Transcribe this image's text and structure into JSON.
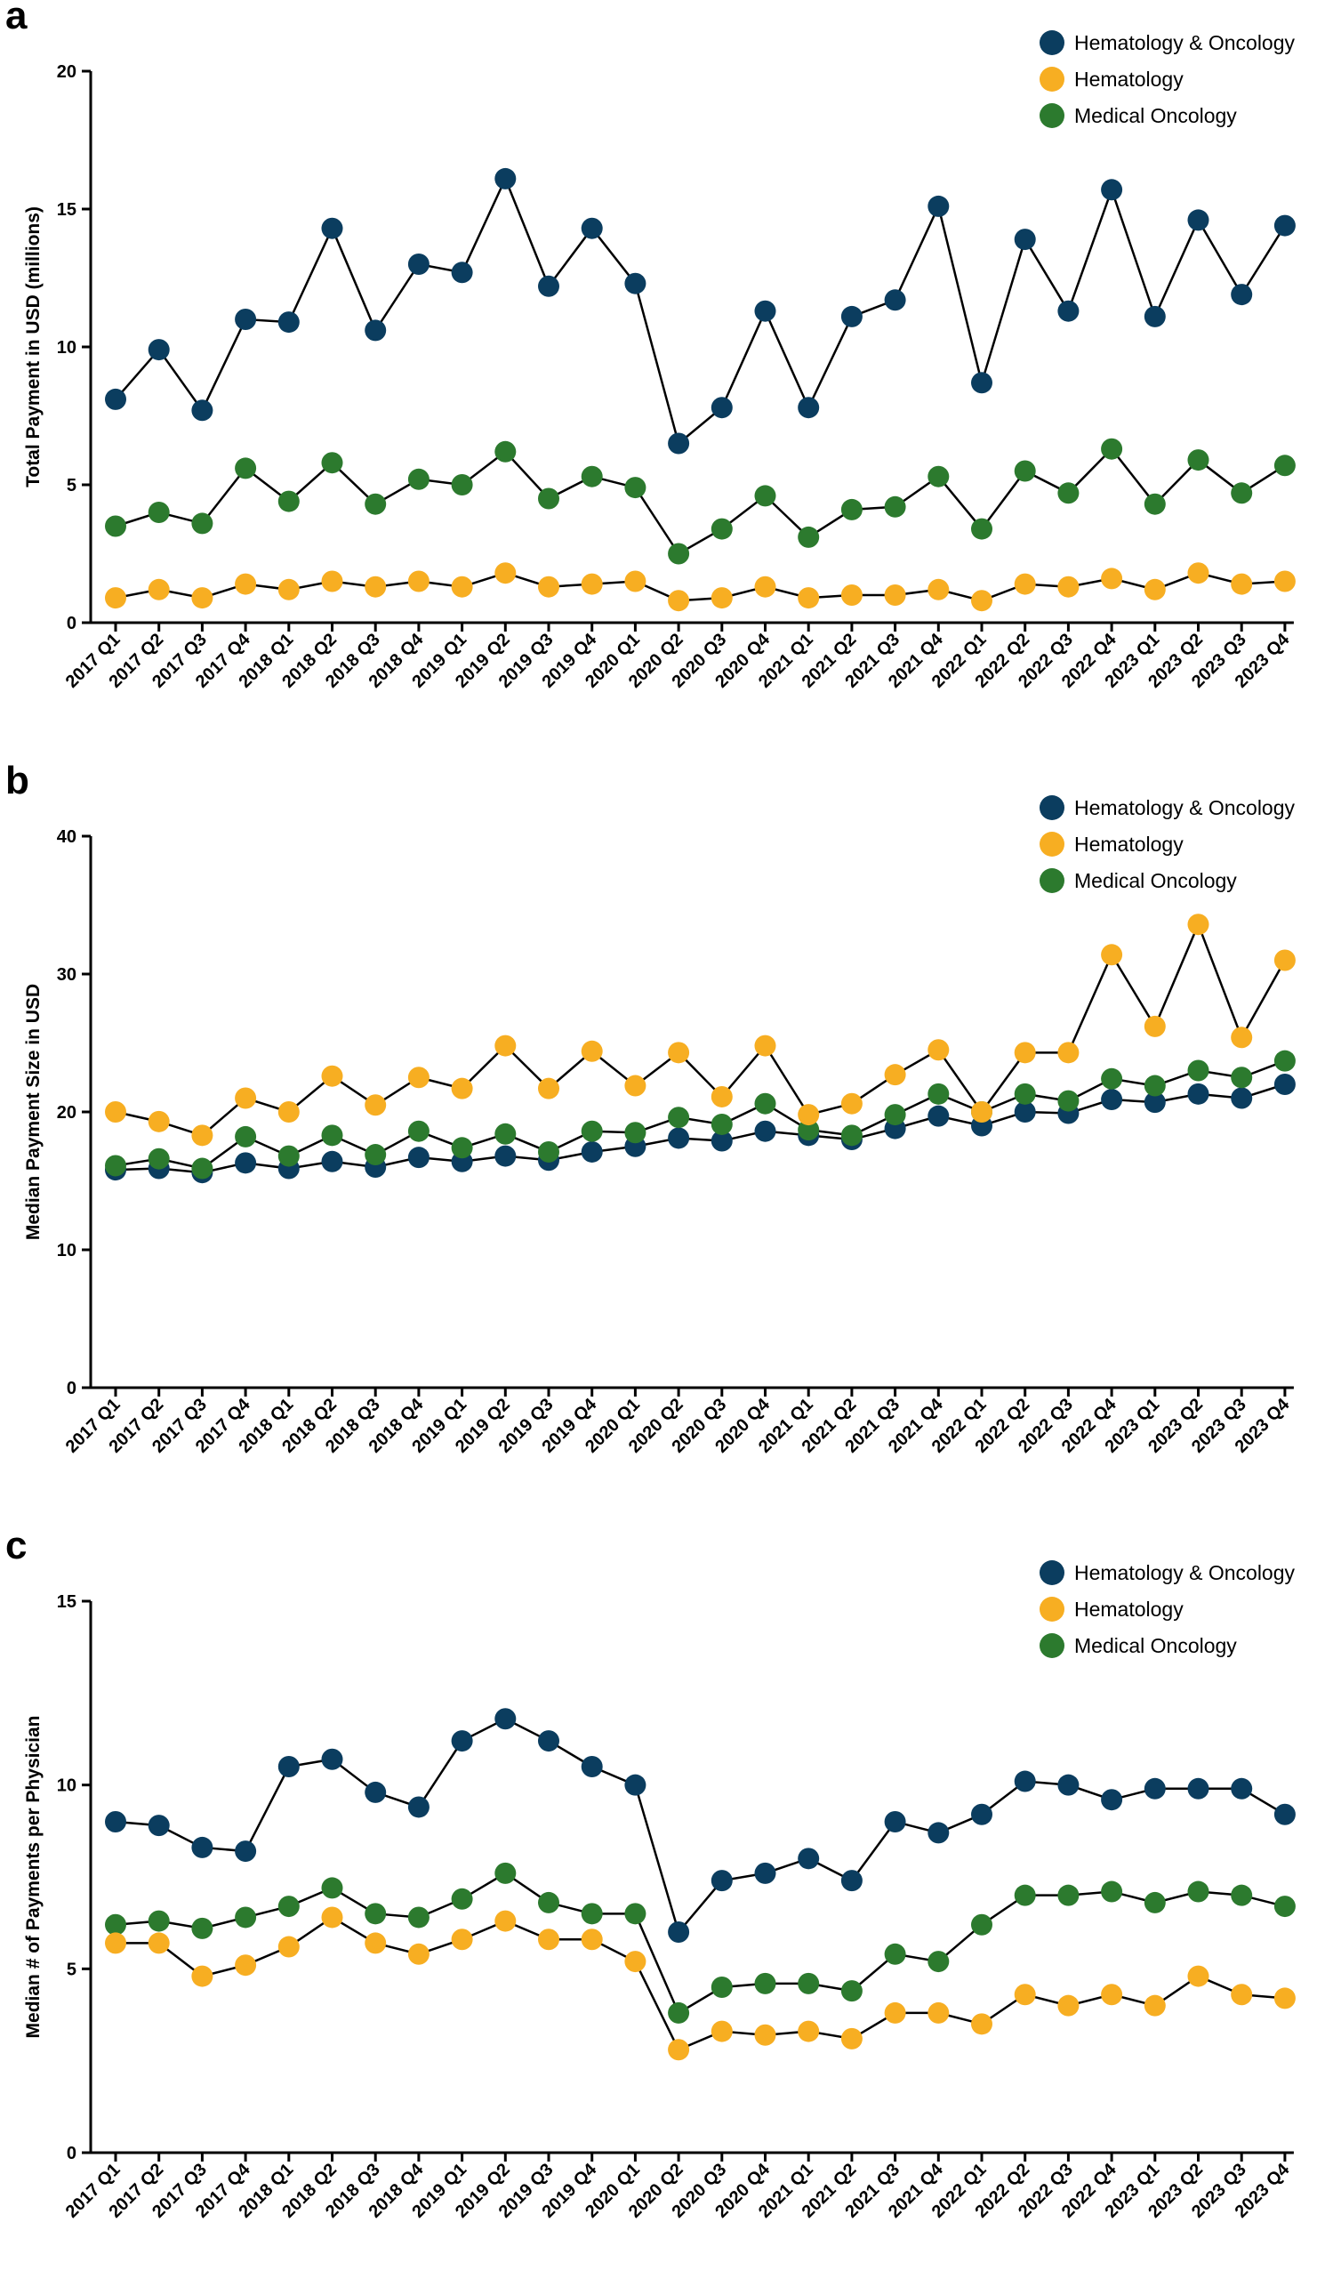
{
  "colors": {
    "hem_onc": "#0b3d5f",
    "hematology": "#f7ae22",
    "med_onc": "#2c7a2e"
  },
  "chart_data": [
    {
      "panel": "a",
      "type": "line",
      "title": "",
      "xlabel": "",
      "ylabel": "Total Payment in USD (millions)",
      "ylim": [
        0,
        20
      ],
      "yticks": [
        0,
        5,
        10,
        15,
        20
      ],
      "legend_position": "top-right",
      "categories": [
        "2017 Q1",
        "2017 Q2",
        "2017 Q3",
        "2017 Q4",
        "2018 Q1",
        "2018 Q2",
        "2018 Q3",
        "2018 Q4",
        "2019 Q1",
        "2019 Q2",
        "2019 Q3",
        "2019 Q4",
        "2020 Q1",
        "2020 Q2",
        "2020 Q3",
        "2020 Q4",
        "2021 Q1",
        "2021 Q2",
        "2021 Q3",
        "2021 Q4",
        "2022 Q1",
        "2022 Q2",
        "2022 Q3",
        "2022 Q4",
        "2023 Q1",
        "2023 Q2",
        "2023 Q3",
        "2023 Q4"
      ],
      "series": [
        {
          "name": "Hematology & Oncology",
          "color_key": "hem_onc",
          "values": [
            8.1,
            9.9,
            7.7,
            11.0,
            10.9,
            14.3,
            10.6,
            13.0,
            12.7,
            16.1,
            12.2,
            14.3,
            12.3,
            6.5,
            7.8,
            11.3,
            7.8,
            11.1,
            11.7,
            15.1,
            8.7,
            13.9,
            11.3,
            15.7,
            11.1,
            14.6,
            11.9,
            14.4
          ]
        },
        {
          "name": "Hematology",
          "color_key": "hematology",
          "values": [
            0.9,
            1.2,
            0.9,
            1.4,
            1.2,
            1.5,
            1.3,
            1.5,
            1.3,
            1.8,
            1.3,
            1.4,
            1.5,
            0.8,
            0.9,
            1.3,
            0.9,
            1.0,
            1.0,
            1.2,
            0.8,
            1.4,
            1.3,
            1.6,
            1.2,
            1.8,
            1.4,
            1.5
          ]
        },
        {
          "name": "Medical Oncology",
          "color_key": "med_onc",
          "values": [
            3.5,
            4.0,
            3.6,
            5.6,
            4.4,
            5.8,
            4.3,
            5.2,
            5.0,
            6.2,
            4.5,
            5.3,
            4.9,
            2.5,
            3.4,
            4.6,
            3.1,
            4.1,
            4.2,
            5.3,
            3.4,
            5.5,
            4.7,
            6.3,
            4.3,
            5.9,
            4.7,
            5.7
          ]
        }
      ]
    },
    {
      "panel": "b",
      "type": "line",
      "title": "",
      "xlabel": "",
      "ylabel": "Median Payment Size in USD",
      "ylim": [
        0,
        40
      ],
      "yticks": [
        0,
        10,
        20,
        30,
        40
      ],
      "legend_position": "top-right",
      "categories": [
        "2017 Q1",
        "2017 Q2",
        "2017 Q3",
        "2017 Q4",
        "2018 Q1",
        "2018 Q2",
        "2018 Q3",
        "2018 Q4",
        "2019 Q1",
        "2019 Q2",
        "2019 Q3",
        "2019 Q4",
        "2020 Q1",
        "2020 Q2",
        "2020 Q3",
        "2020 Q4",
        "2021 Q1",
        "2021 Q2",
        "2021 Q3",
        "2021 Q4",
        "2022 Q1",
        "2022 Q2",
        "2022 Q3",
        "2022 Q4",
        "2023 Q1",
        "2023 Q2",
        "2023 Q3",
        "2023 Q4"
      ],
      "series": [
        {
          "name": "Hematology & Oncology",
          "color_key": "hem_onc",
          "values": [
            15.8,
            15.9,
            15.6,
            16.3,
            15.9,
            16.4,
            16.0,
            16.7,
            16.4,
            16.8,
            16.5,
            17.1,
            17.5,
            18.1,
            17.9,
            18.6,
            18.3,
            18.0,
            18.8,
            19.7,
            19.0,
            20.0,
            19.9,
            20.9,
            20.7,
            21.3,
            21.0,
            22.0
          ]
        },
        {
          "name": "Hematology",
          "color_key": "hematology",
          "values": [
            20.0,
            19.3,
            18.3,
            21.0,
            20.0,
            22.6,
            20.5,
            22.5,
            21.7,
            24.8,
            21.7,
            24.4,
            21.9,
            24.3,
            21.1,
            24.8,
            19.8,
            20.6,
            22.7,
            24.5,
            20.0,
            24.3,
            24.3,
            31.4,
            26.2,
            33.6,
            25.4,
            31.0
          ]
        },
        {
          "name": "Medical Oncology",
          "color_key": "med_onc",
          "values": [
            16.1,
            16.6,
            15.9,
            18.2,
            16.8,
            18.3,
            16.9,
            18.6,
            17.4,
            18.4,
            17.1,
            18.6,
            18.5,
            19.6,
            19.1,
            20.6,
            18.7,
            18.3,
            19.8,
            21.3,
            20.0,
            21.3,
            20.8,
            22.4,
            21.9,
            23.0,
            22.5,
            23.7
          ]
        }
      ]
    },
    {
      "panel": "c",
      "type": "line",
      "title": "",
      "xlabel": "",
      "ylabel": "Median # of Payments per Physician",
      "ylim": [
        0,
        15
      ],
      "yticks": [
        0,
        5,
        10,
        15
      ],
      "legend_position": "top-right",
      "categories": [
        "2017 Q1",
        "2017 Q2",
        "2017 Q3",
        "2017 Q4",
        "2018 Q1",
        "2018 Q2",
        "2018 Q3",
        "2018 Q4",
        "2019 Q1",
        "2019 Q2",
        "2019 Q3",
        "2019 Q4",
        "2020 Q1",
        "2020 Q2",
        "2020 Q3",
        "2020 Q4",
        "2021 Q1",
        "2021 Q2",
        "2021 Q3",
        "2021 Q4",
        "2022 Q1",
        "2022 Q2",
        "2022 Q3",
        "2022 Q4",
        "2023 Q1",
        "2023 Q2",
        "2023 Q3",
        "2023 Q4"
      ],
      "series": [
        {
          "name": "Hematology & Oncology",
          "color_key": "hem_onc",
          "values": [
            9.0,
            8.9,
            8.3,
            8.2,
            10.5,
            10.7,
            9.8,
            9.4,
            11.2,
            11.8,
            11.2,
            10.5,
            10.0,
            6.0,
            7.4,
            7.6,
            8.0,
            7.4,
            9.0,
            8.7,
            9.2,
            10.1,
            10.0,
            9.6,
            9.9,
            9.9,
            9.9,
            9.2
          ]
        },
        {
          "name": "Hematology",
          "color_key": "hematology",
          "values": [
            5.7,
            5.7,
            4.8,
            5.1,
            5.6,
            6.4,
            5.7,
            5.4,
            5.8,
            6.3,
            5.8,
            5.8,
            5.2,
            2.8,
            3.3,
            3.2,
            3.3,
            3.1,
            3.8,
            3.8,
            3.5,
            4.3,
            4.0,
            4.3,
            4.0,
            4.8,
            4.3,
            4.2
          ]
        },
        {
          "name": "Medical Oncology",
          "color_key": "med_onc",
          "values": [
            6.2,
            6.3,
            6.1,
            6.4,
            6.7,
            7.2,
            6.5,
            6.4,
            6.9,
            7.6,
            6.8,
            6.5,
            6.5,
            3.8,
            4.5,
            4.6,
            4.6,
            4.4,
            5.4,
            5.2,
            6.2,
            7.0,
            7.0,
            7.1,
            6.8,
            7.1,
            7.0,
            6.7
          ]
        }
      ]
    }
  ]
}
